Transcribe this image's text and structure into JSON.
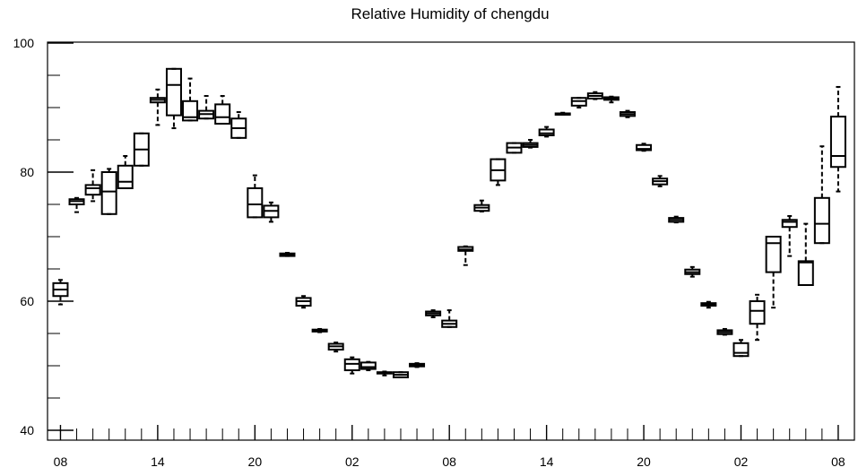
{
  "chart_data": {
    "type": "box",
    "title": "Relative Humidity of chengdu",
    "xlabel": "",
    "ylabel": "",
    "ylim": [
      40,
      100
    ],
    "yticks": [
      40,
      60,
      80,
      100
    ],
    "x_ticklabels": [
      "08",
      "14",
      "20",
      "02",
      "08",
      "14",
      "20",
      "02",
      "08"
    ],
    "x_tick_hours": [
      0,
      6,
      12,
      18,
      24,
      30,
      36,
      42,
      48
    ],
    "x_range": [
      -0.8,
      49.0
    ],
    "grid": false,
    "boxes": [
      {
        "x": 0,
        "whisker_low": 59.5,
        "q1": 60.8,
        "median": 61.8,
        "q3": 62.8,
        "whisker_high": 63.3
      },
      {
        "x": 1,
        "whisker_low": 73.8,
        "q1": 75.0,
        "median": 75.5,
        "q3": 75.8,
        "whisker_high": 76.0
      },
      {
        "x": 2,
        "whisker_low": 75.5,
        "q1": 76.5,
        "median": 77.5,
        "q3": 78.0,
        "whisker_high": 80.3
      },
      {
        "x": 3,
        "whisker_low": 73.5,
        "q1": 73.5,
        "median": 77.0,
        "q3": 80.0,
        "whisker_high": 80.5
      },
      {
        "x": 4,
        "whisker_low": 77.5,
        "q1": 77.5,
        "median": 78.5,
        "q3": 81.0,
        "whisker_high": 82.5
      },
      {
        "x": 5,
        "whisker_low": 81.0,
        "q1": 81.0,
        "median": 83.5,
        "q3": 86.0,
        "whisker_high": 86.0
      },
      {
        "x": 6,
        "whisker_low": 87.3,
        "q1": 90.8,
        "median": 91.2,
        "q3": 91.5,
        "whisker_high": 92.8
      },
      {
        "x": 7,
        "whisker_low": 86.8,
        "q1": 88.8,
        "median": 93.5,
        "q3": 96.0,
        "whisker_high": 96.0
      },
      {
        "x": 8,
        "whisker_low": 88.0,
        "q1": 88.0,
        "median": 88.5,
        "q3": 91.0,
        "whisker_high": 94.5
      },
      {
        "x": 9,
        "whisker_low": 88.3,
        "q1": 88.3,
        "median": 89.0,
        "q3": 89.5,
        "whisker_high": 91.8
      },
      {
        "x": 10,
        "whisker_low": 87.5,
        "q1": 87.5,
        "median": 88.5,
        "q3": 90.5,
        "whisker_high": 91.8
      },
      {
        "x": 11,
        "whisker_low": 85.3,
        "q1": 85.3,
        "median": 86.8,
        "q3": 88.3,
        "whisker_high": 89.3
      },
      {
        "x": 12,
        "whisker_low": 73.0,
        "q1": 73.0,
        "median": 75.0,
        "q3": 77.5,
        "whisker_high": 79.5
      },
      {
        "x": 13,
        "whisker_low": 72.3,
        "q1": 73.0,
        "median": 74.0,
        "q3": 74.8,
        "whisker_high": 75.3
      },
      {
        "x": 14,
        "whisker_low": 67.0,
        "q1": 67.0,
        "median": 67.2,
        "q3": 67.4,
        "whisker_high": 67.5
      },
      {
        "x": 15,
        "whisker_low": 59.0,
        "q1": 59.3,
        "median": 60.0,
        "q3": 60.5,
        "whisker_high": 60.8
      },
      {
        "x": 16,
        "whisker_low": 55.2,
        "q1": 55.3,
        "median": 55.4,
        "q3": 55.6,
        "whisker_high": 55.7
      },
      {
        "x": 17,
        "whisker_low": 52.2,
        "q1": 52.5,
        "median": 53.0,
        "q3": 53.4,
        "whisker_high": 53.6
      },
      {
        "x": 18,
        "whisker_low": 48.8,
        "q1": 49.3,
        "median": 50.3,
        "q3": 51.0,
        "whisker_high": 51.3
      },
      {
        "x": 19,
        "whisker_low": 49.3,
        "q1": 49.5,
        "median": 49.8,
        "q3": 50.5,
        "whisker_high": 50.6
      },
      {
        "x": 20,
        "whisker_low": 48.5,
        "q1": 48.8,
        "median": 48.9,
        "q3": 49.0,
        "whisker_high": 49.1
      },
      {
        "x": 21,
        "whisker_low": 48.2,
        "q1": 48.2,
        "median": 48.6,
        "q3": 49.0,
        "whisker_high": 49.0
      },
      {
        "x": 22,
        "whisker_low": 49.8,
        "q1": 49.9,
        "median": 50.1,
        "q3": 50.3,
        "whisker_high": 50.4
      },
      {
        "x": 23,
        "whisker_low": 57.5,
        "q1": 57.8,
        "median": 58.1,
        "q3": 58.4,
        "whisker_high": 58.6
      },
      {
        "x": 24,
        "whisker_low": 56.0,
        "q1": 56.0,
        "median": 56.5,
        "q3": 57.0,
        "whisker_high": 58.6
      },
      {
        "x": 25,
        "whisker_low": 65.6,
        "q1": 67.8,
        "median": 68.0,
        "q3": 68.4,
        "whisker_high": 68.5
      },
      {
        "x": 26,
        "whisker_low": 73.9,
        "q1": 74.0,
        "median": 74.5,
        "q3": 74.9,
        "whisker_high": 75.6
      },
      {
        "x": 27,
        "whisker_low": 78.0,
        "q1": 78.7,
        "median": 80.3,
        "q3": 82.0,
        "whisker_high": 82.0
      },
      {
        "x": 28,
        "whisker_low": 83.0,
        "q1": 83.0,
        "median": 83.8,
        "q3": 84.5,
        "whisker_high": 84.5
      },
      {
        "x": 29,
        "whisker_low": 83.8,
        "q1": 83.9,
        "median": 84.2,
        "q3": 84.5,
        "whisker_high": 85.0
      },
      {
        "x": 30,
        "whisker_low": 85.5,
        "q1": 85.7,
        "median": 86.0,
        "q3": 86.6,
        "whisker_high": 87.0
      },
      {
        "x": 31,
        "whisker_low": 88.9,
        "q1": 88.9,
        "median": 89.0,
        "q3": 89.1,
        "whisker_high": 89.2
      },
      {
        "x": 32,
        "whisker_low": 90.0,
        "q1": 90.3,
        "median": 91.0,
        "q3": 91.5,
        "whisker_high": 91.5
      },
      {
        "x": 33,
        "whisker_low": 91.3,
        "q1": 91.4,
        "median": 91.8,
        "q3": 92.2,
        "whisker_high": 92.4
      },
      {
        "x": 34,
        "whisker_low": 90.8,
        "q1": 91.2,
        "median": 91.4,
        "q3": 91.6,
        "whisker_high": 91.7
      },
      {
        "x": 35,
        "whisker_low": 88.5,
        "q1": 88.7,
        "median": 89.0,
        "q3": 89.3,
        "whisker_high": 89.5
      },
      {
        "x": 36,
        "whisker_low": 83.3,
        "q1": 83.4,
        "median": 83.6,
        "q3": 84.2,
        "whisker_high": 84.4
      },
      {
        "x": 37,
        "whisker_low": 77.8,
        "q1": 78.1,
        "median": 78.6,
        "q3": 79.0,
        "whisker_high": 79.4
      },
      {
        "x": 38,
        "whisker_low": 72.2,
        "q1": 72.3,
        "median": 72.6,
        "q3": 72.9,
        "whisker_high": 73.1
      },
      {
        "x": 39,
        "whisker_low": 63.8,
        "q1": 64.2,
        "median": 64.5,
        "q3": 64.9,
        "whisker_high": 65.3
      },
      {
        "x": 40,
        "whisker_low": 59.0,
        "q1": 59.3,
        "median": 59.5,
        "q3": 59.7,
        "whisker_high": 59.9
      },
      {
        "x": 41,
        "whisker_low": 54.8,
        "q1": 54.9,
        "median": 55.2,
        "q3": 55.5,
        "whisker_high": 55.7
      },
      {
        "x": 42,
        "whisker_low": 51.5,
        "q1": 51.5,
        "median": 52.0,
        "q3": 53.5,
        "whisker_high": 54.0
      },
      {
        "x": 43,
        "whisker_low": 54.0,
        "q1": 56.5,
        "median": 58.5,
        "q3": 60.0,
        "whisker_high": 61.0
      },
      {
        "x": 44,
        "whisker_low": 59.0,
        "q1": 64.5,
        "median": 69.0,
        "q3": 70.0,
        "whisker_high": 70.0
      },
      {
        "x": 45,
        "whisker_low": 67.0,
        "q1": 71.5,
        "median": 72.3,
        "q3": 72.6,
        "whisker_high": 73.2
      },
      {
        "x": 46,
        "whisker_low": 62.5,
        "q1": 62.5,
        "median": 66.0,
        "q3": 66.2,
        "whisker_high": 72.0
      },
      {
        "x": 47,
        "whisker_low": 69.0,
        "q1": 69.0,
        "median": 72.0,
        "q3": 76.0,
        "whisker_high": 84.0
      },
      {
        "x": 48,
        "whisker_low": 77.0,
        "q1": 80.8,
        "median": 82.5,
        "q3": 88.6,
        "whisker_high": 93.2
      }
    ]
  }
}
